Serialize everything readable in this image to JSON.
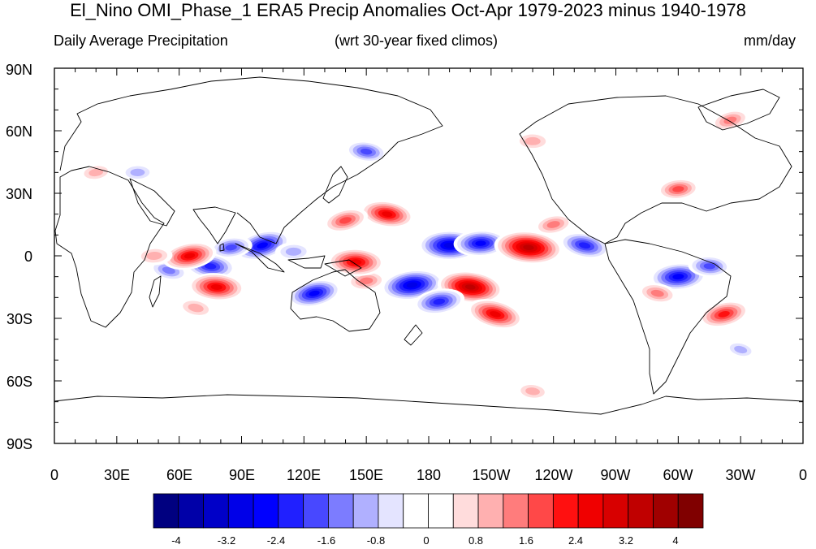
{
  "title": "El_Nino OMI_Phase_1 ERA5 Precip Anomalies Oct-Apr 1979-2023 minus 1940-1978",
  "subtitle_left": "Daily Average Precipitation",
  "subtitle_center": "(wrt 30-year fixed climos)",
  "subtitle_right": "mm/day",
  "lat_ticks": [
    "90N",
    "60N",
    "30N",
    "0",
    "30S",
    "60S",
    "90S"
  ],
  "lon_ticks": [
    "0",
    "30E",
    "60E",
    "90E",
    "120E",
    "150E",
    "180",
    "150W",
    "120W",
    "90W",
    "60W",
    "30W",
    "0"
  ],
  "colorbar": {
    "colors": [
      "#000080",
      "#0000a8",
      "#0000c8",
      "#0000e8",
      "#0000ff",
      "#2020ff",
      "#4848ff",
      "#7c7cff",
      "#b0b0ff",
      "#e4e4ff",
      "#ffffff",
      "#ffffff",
      "#ffdcdc",
      "#ffb0b0",
      "#ff7c7c",
      "#ff4848",
      "#ff1010",
      "#f00000",
      "#d80000",
      "#c00000",
      "#a00000",
      "#800000"
    ],
    "labels": [
      "-4",
      "-3.2",
      "-2.4",
      "-1.6",
      "-0.8",
      "0",
      "0.8",
      "1.6",
      "2.4",
      "3.2",
      "4"
    ]
  },
  "anomalies": [
    {
      "lon": 100,
      "lat": 5,
      "value": -2.8
    },
    {
      "lon": 85,
      "lat": 4,
      "value": -1.8
    },
    {
      "lon": 115,
      "lat": 2,
      "value": -1.4
    },
    {
      "lon": 75,
      "lat": -5,
      "value": -2.4
    },
    {
      "lon": 55,
      "lat": -7,
      "value": -1.6
    },
    {
      "lon": 65,
      "lat": 0,
      "value": 2.6
    },
    {
      "lon": 48,
      "lat": 0,
      "value": 1.4
    },
    {
      "lon": 78,
      "lat": -15,
      "value": 2.8
    },
    {
      "lon": 68,
      "lat": -25,
      "value": 1.4
    },
    {
      "lon": 125,
      "lat": -18,
      "value": -2.6
    },
    {
      "lon": 150,
      "lat": -12,
      "value": 1.6
    },
    {
      "lon": 145,
      "lat": -3,
      "value": 2.8
    },
    {
      "lon": 160,
      "lat": 20,
      "value": 2.6
    },
    {
      "lon": 140,
      "lat": 17,
      "value": 2.0
    },
    {
      "lon": 172,
      "lat": -14,
      "value": -3.2
    },
    {
      "lon": 190,
      "lat": 5,
      "value": -3.2
    },
    {
      "lon": 200,
      "lat": -15,
      "value": 3.4
    },
    {
      "lon": 212,
      "lat": -28,
      "value": 2.8
    },
    {
      "lon": 185,
      "lat": -22,
      "value": -2.4
    },
    {
      "lon": 205,
      "lat": 6,
      "value": -2.6
    },
    {
      "lon": 228,
      "lat": 4,
      "value": 3.6
    },
    {
      "lon": 255,
      "lat": 5,
      "value": -2.4
    },
    {
      "lon": 240,
      "lat": 15,
      "value": 1.6
    },
    {
      "lon": 300,
      "lat": -10,
      "value": -2.8
    },
    {
      "lon": 315,
      "lat": -5,
      "value": -1.8
    },
    {
      "lon": 290,
      "lat": -18,
      "value": 1.6
    },
    {
      "lon": 322,
      "lat": -28,
      "value": 2.4
    },
    {
      "lon": 300,
      "lat": 32,
      "value": 1.8
    },
    {
      "lon": 230,
      "lat": 55,
      "value": 1.4
    },
    {
      "lon": 150,
      "lat": 50,
      "value": -1.8
    },
    {
      "lon": 325,
      "lat": 65,
      "value": 1.6
    },
    {
      "lon": 20,
      "lat": 40,
      "value": 1.2
    },
    {
      "lon": 40,
      "lat": 40,
      "value": -1.2
    },
    {
      "lon": 230,
      "lat": -65,
      "value": 1.2
    },
    {
      "lon": 330,
      "lat": -45,
      "value": -1.0
    }
  ]
}
